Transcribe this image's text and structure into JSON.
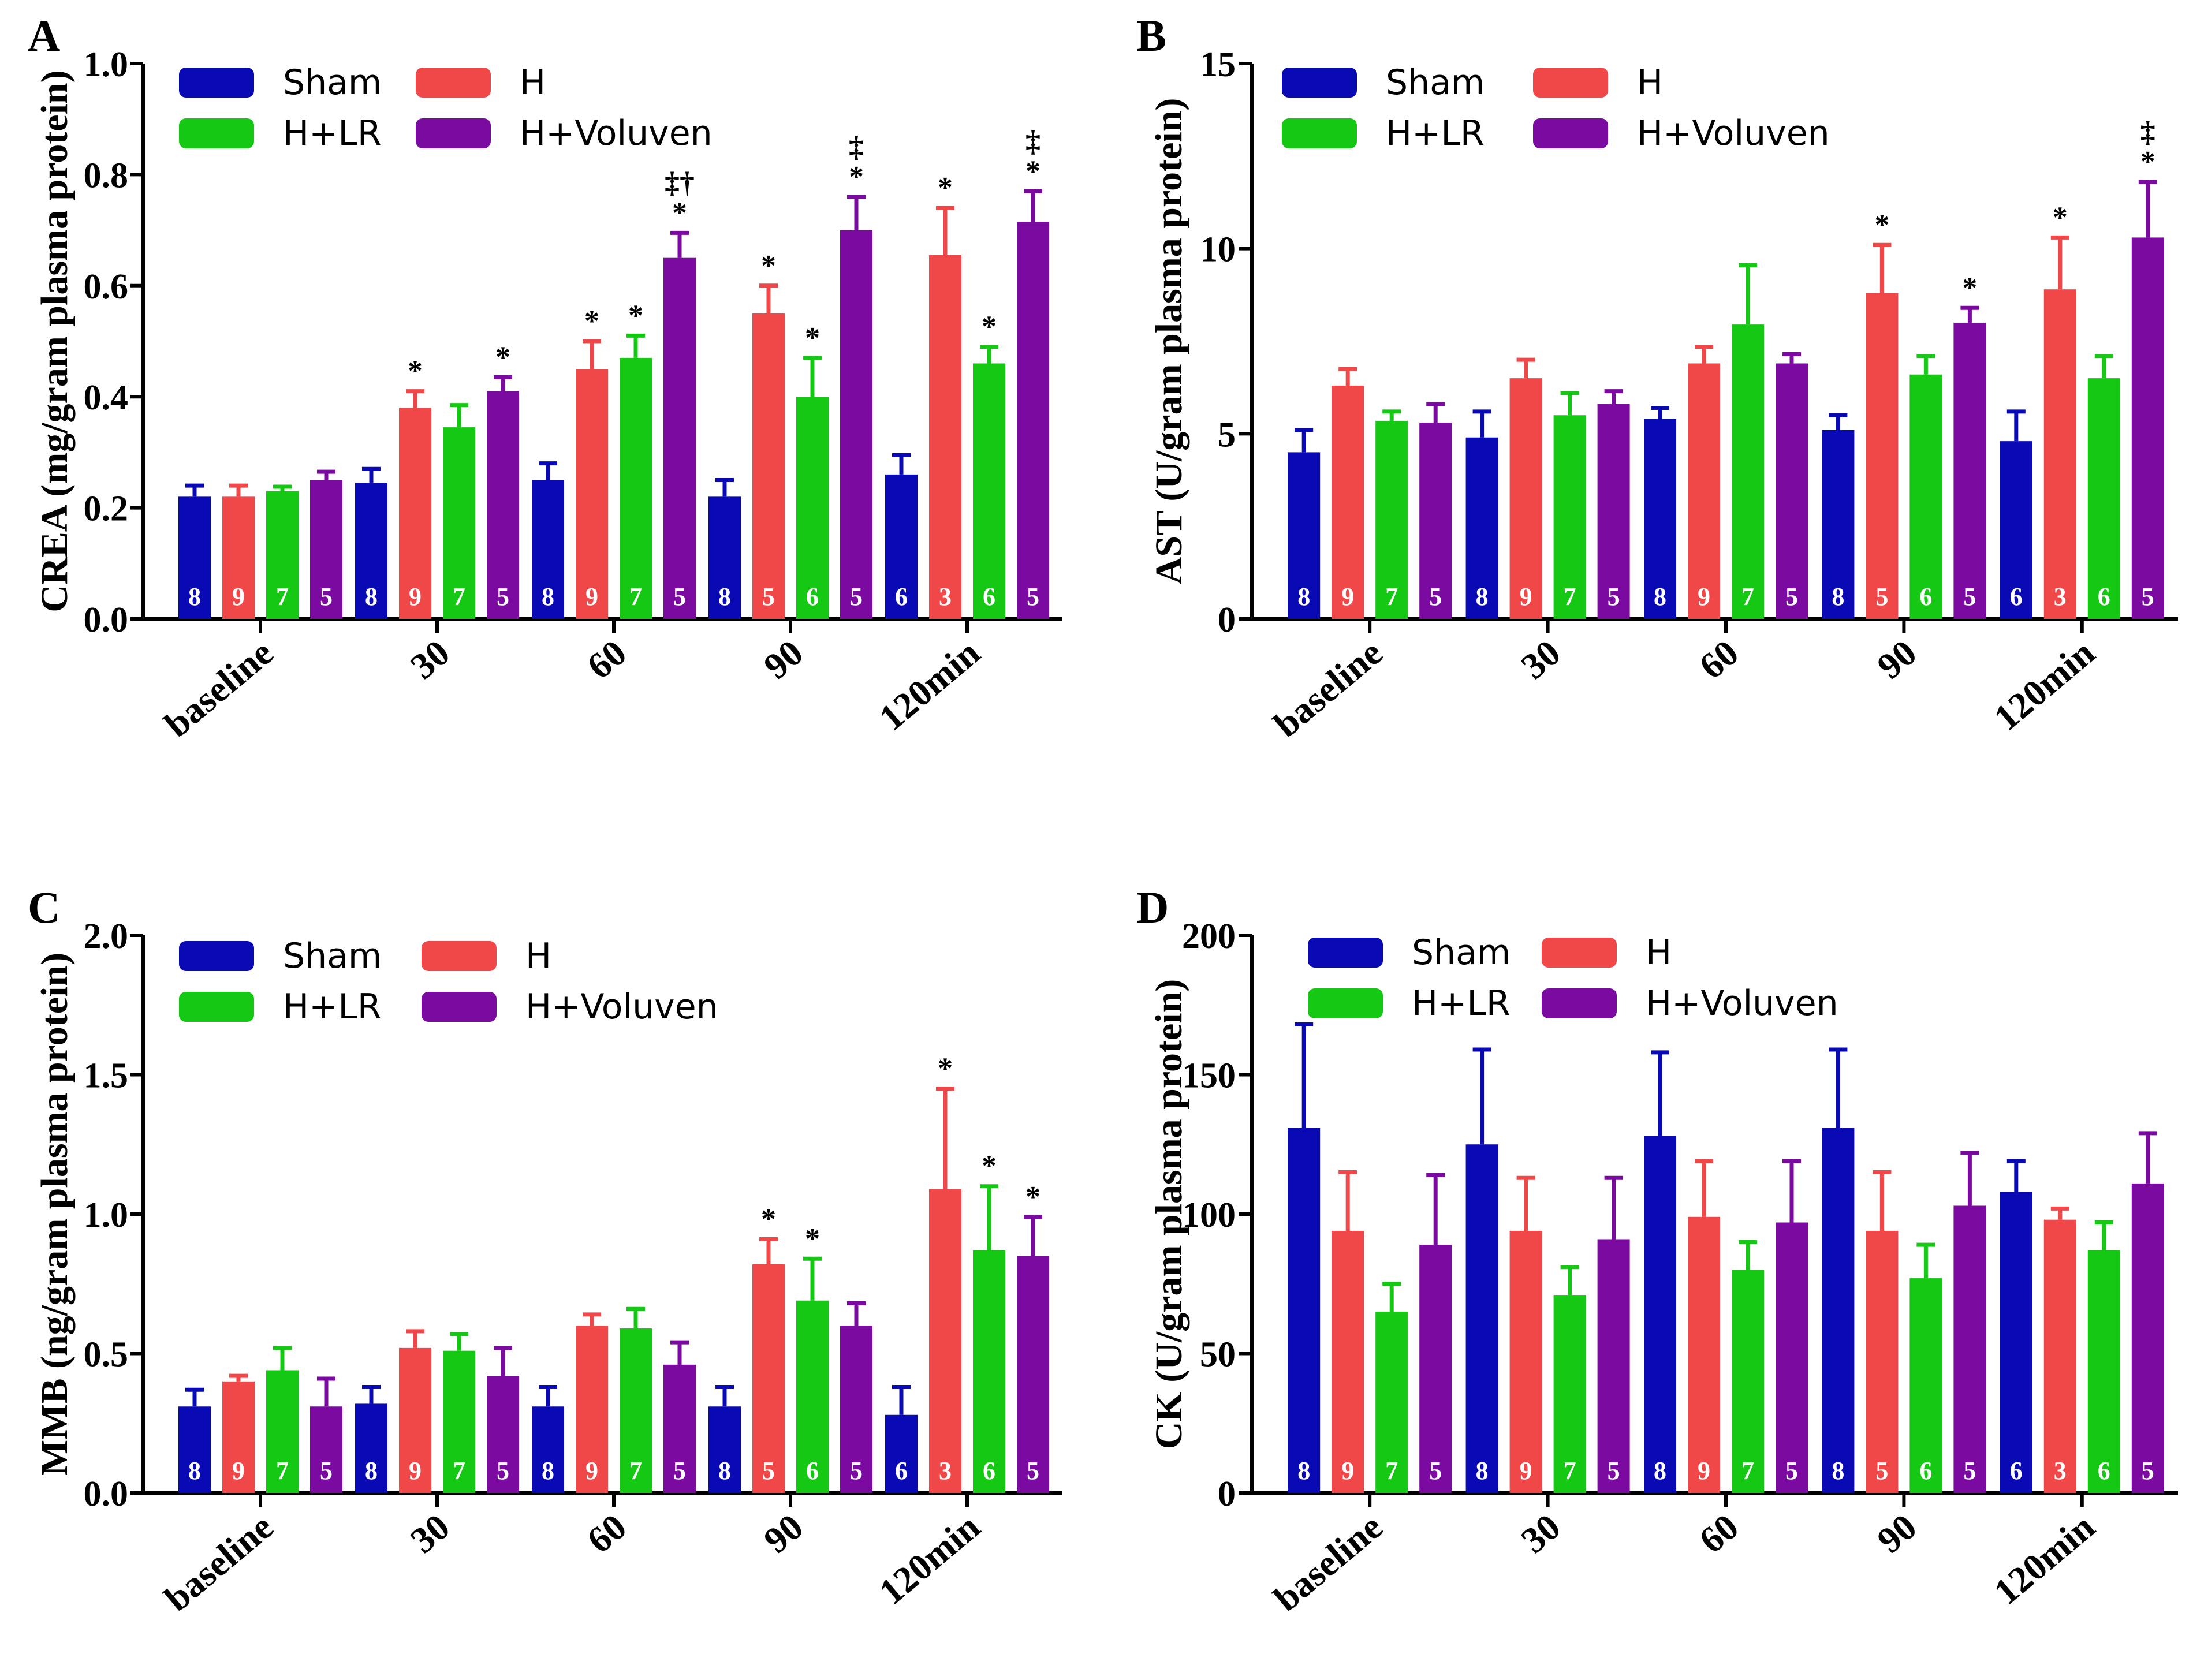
{
  "colors": {
    "sham": "#0a0ab4",
    "h": "#f04848",
    "hlr": "#14c814",
    "hvol": "#7a0aa0",
    "axis": "#000000",
    "n_text": "#ffffff"
  },
  "chart_data": [
    {
      "type": "bar",
      "panel": "A",
      "ylabel": "CREA (mg/gram plasma protein)",
      "ylim": [
        0,
        1.0
      ],
      "yticks": [
        "0.0",
        "0.2",
        "0.4",
        "0.6",
        "0.8",
        "1.0"
      ],
      "categories": [
        "baseline",
        "30",
        "60",
        "90",
        "120min"
      ],
      "legend": [
        "Sham",
        "H",
        "H+LR",
        "H+Voluven"
      ],
      "series": [
        {
          "name": "Sham",
          "key": "sham",
          "values": [
            0.22,
            0.245,
            0.25,
            0.22,
            0.26
          ],
          "err": [
            0.02,
            0.025,
            0.03,
            0.03,
            0.035
          ],
          "n": [
            "8",
            "8",
            "8",
            "8",
            "6"
          ],
          "marks": [
            "",
            "",
            "",
            "",
            ""
          ]
        },
        {
          "name": "H",
          "key": "h",
          "values": [
            0.22,
            0.38,
            0.45,
            0.55,
            0.655
          ],
          "err": [
            0.02,
            0.03,
            0.05,
            0.05,
            0.085
          ],
          "n": [
            "9",
            "9",
            "9",
            "5",
            "3"
          ],
          "marks": [
            "",
            "*",
            "*",
            "*",
            "*"
          ]
        },
        {
          "name": "H+LR",
          "key": "hlr",
          "values": [
            0.23,
            0.345,
            0.47,
            0.4,
            0.46
          ],
          "err": [
            0.008,
            0.04,
            0.04,
            0.07,
            0.03
          ],
          "n": [
            "7",
            "7",
            "7",
            "6",
            "6"
          ],
          "marks": [
            "",
            "",
            "*",
            "*",
            "*"
          ]
        },
        {
          "name": "H+Voluven",
          "key": "hvol",
          "values": [
            0.25,
            0.41,
            0.65,
            0.7,
            0.715
          ],
          "err": [
            0.015,
            0.025,
            0.045,
            0.06,
            0.055
          ],
          "n": [
            "5",
            "5",
            "5",
            "5",
            "5"
          ],
          "marks": [
            "",
            "*",
            "*\n‡†",
            "*\n‡",
            "*\n‡"
          ]
        }
      ]
    },
    {
      "type": "bar",
      "panel": "B",
      "ylabel": "AST (U/gram plasma protein)",
      "ylim": [
        0,
        15
      ],
      "yticks": [
        "0",
        "5",
        "10",
        "15"
      ],
      "categories": [
        "baseline",
        "30",
        "60",
        "90",
        "120min"
      ],
      "legend": [
        "Sham",
        "H",
        "H+LR",
        "H+Voluven"
      ],
      "series": [
        {
          "name": "Sham",
          "key": "sham",
          "values": [
            4.5,
            4.9,
            5.4,
            5.1,
            4.8
          ],
          "err": [
            0.6,
            0.7,
            0.3,
            0.4,
            0.8
          ],
          "n": [
            "8",
            "8",
            "8",
            "8",
            "6"
          ],
          "marks": [
            "",
            "",
            "",
            "",
            ""
          ]
        },
        {
          "name": "H",
          "key": "h",
          "values": [
            6.3,
            6.5,
            6.9,
            8.8,
            8.9
          ],
          "err": [
            0.45,
            0.5,
            0.45,
            1.3,
            1.4
          ],
          "n": [
            "9",
            "9",
            "9",
            "5",
            "3"
          ],
          "marks": [
            "",
            "",
            "",
            "*",
            "*"
          ]
        },
        {
          "name": "H+LR",
          "key": "hlr",
          "values": [
            5.35,
            5.5,
            7.95,
            6.6,
            6.5
          ],
          "err": [
            0.25,
            0.6,
            1.6,
            0.5,
            0.6
          ],
          "n": [
            "7",
            "7",
            "7",
            "6",
            "6"
          ],
          "marks": [
            "",
            "",
            "",
            "",
            ""
          ]
        },
        {
          "name": "H+Voluven",
          "key": "hvol",
          "values": [
            5.3,
            5.8,
            6.9,
            8.0,
            10.3
          ],
          "err": [
            0.5,
            0.35,
            0.25,
            0.4,
            1.5
          ],
          "n": [
            "5",
            "5",
            "5",
            "5",
            "5"
          ],
          "marks": [
            "",
            "",
            "",
            "*",
            "*\n‡"
          ]
        }
      ]
    },
    {
      "type": "bar",
      "panel": "C",
      "ylabel": "MMB (ng/gram plasma protein)",
      "ylim": [
        0,
        2.0
      ],
      "yticks": [
        "0.0",
        "0.5",
        "1.0",
        "1.5",
        "2.0"
      ],
      "categories": [
        "baseline",
        "30",
        "60",
        "90",
        "120min"
      ],
      "legend": [
        "Sham",
        "H",
        "H+LR",
        "H+Voluven"
      ],
      "series": [
        {
          "name": "Sham",
          "key": "sham",
          "values": [
            0.31,
            0.32,
            0.31,
            0.31,
            0.28
          ],
          "err": [
            0.06,
            0.06,
            0.07,
            0.07,
            0.1
          ],
          "n": [
            "8",
            "8",
            "8",
            "8",
            "6"
          ],
          "marks": [
            "",
            "",
            "",
            "",
            ""
          ]
        },
        {
          "name": "H",
          "key": "h",
          "values": [
            0.4,
            0.52,
            0.6,
            0.82,
            1.09
          ],
          "err": [
            0.02,
            0.06,
            0.04,
            0.09,
            0.36
          ],
          "n": [
            "9",
            "9",
            "9",
            "5",
            "3"
          ],
          "marks": [
            "",
            "",
            "",
            "*",
            "*"
          ]
        },
        {
          "name": "H+LR",
          "key": "hlr",
          "values": [
            0.44,
            0.51,
            0.59,
            0.69,
            0.87
          ],
          "err": [
            0.08,
            0.06,
            0.07,
            0.15,
            0.23
          ],
          "n": [
            "7",
            "7",
            "7",
            "6",
            "6"
          ],
          "marks": [
            "",
            "",
            "",
            "*",
            "*"
          ]
        },
        {
          "name": "H+Voluven",
          "key": "hvol",
          "values": [
            0.31,
            0.42,
            0.46,
            0.6,
            0.85
          ],
          "err": [
            0.1,
            0.1,
            0.08,
            0.08,
            0.14
          ],
          "n": [
            "5",
            "5",
            "5",
            "5",
            "5"
          ],
          "marks": [
            "",
            "",
            "",
            "",
            "*"
          ]
        }
      ]
    },
    {
      "type": "bar",
      "panel": "D",
      "ylabel": "CK (U/gram plasma protein)",
      "ylim": [
        0,
        200
      ],
      "yticks": [
        "0",
        "50",
        "100",
        "150",
        "200"
      ],
      "categories": [
        "baseline",
        "30",
        "60",
        "90",
        "120min"
      ],
      "legend": [
        "Sham",
        "H",
        "H+LR",
        "H+Voluven"
      ],
      "series": [
        {
          "name": "Sham",
          "key": "sham",
          "values": [
            131,
            125,
            128,
            131,
            108
          ],
          "err": [
            37,
            34,
            30,
            28,
            11
          ],
          "n": [
            "8",
            "8",
            "8",
            "8",
            "6"
          ],
          "marks": [
            "",
            "",
            "",
            "",
            ""
          ]
        },
        {
          "name": "H",
          "key": "h",
          "values": [
            94,
            94,
            99,
            94,
            98
          ],
          "err": [
            21,
            19,
            20,
            21,
            4
          ],
          "n": [
            "9",
            "9",
            "9",
            "5",
            "3"
          ],
          "marks": [
            "",
            "",
            "",
            "",
            ""
          ]
        },
        {
          "name": "H+LR",
          "key": "hlr",
          "values": [
            65,
            71,
            80,
            77,
            87
          ],
          "err": [
            10,
            10,
            10,
            12,
            10
          ],
          "n": [
            "7",
            "7",
            "7",
            "6",
            "6"
          ],
          "marks": [
            "",
            "",
            "",
            "",
            ""
          ]
        },
        {
          "name": "H+Voluven",
          "key": "hvol",
          "values": [
            89,
            91,
            97,
            103,
            111
          ],
          "err": [
            25,
            22,
            22,
            19,
            18
          ],
          "n": [
            "5",
            "5",
            "5",
            "5",
            "5"
          ],
          "marks": [
            "",
            "",
            "",
            "",
            ""
          ]
        }
      ]
    }
  ]
}
